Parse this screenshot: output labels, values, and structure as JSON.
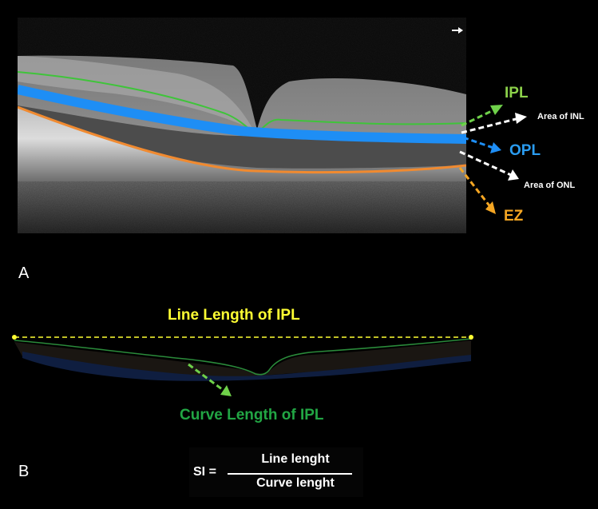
{
  "panel_a": {
    "letter": "A",
    "labels": {
      "ipl": "IPL",
      "inl": "Area of INL",
      "opl": "OPL",
      "onl": "Area of ONL",
      "ez": "EZ"
    },
    "colors": {
      "ipl": "#6fd14a",
      "opl": "#1e8ef5",
      "ez": "#f5a623",
      "white": "#ffffff"
    }
  },
  "panel_b": {
    "letter": "B",
    "line_length_label": "Line Length of IPL",
    "curve_length_label": "Curve Length of IPL",
    "colors": {
      "line": "#ffff33",
      "curve": "#22a644"
    }
  },
  "formula": {
    "lhs": "SI =",
    "numerator": "Line lenght",
    "denominator": "Curve lenght"
  }
}
